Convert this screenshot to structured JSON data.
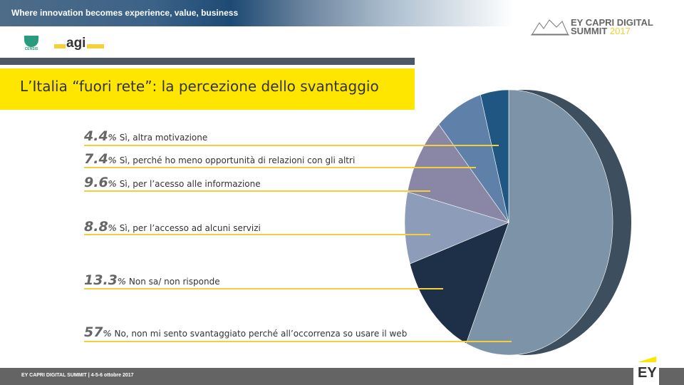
{
  "header": {
    "tagline": "Where innovation becomes experience, value, business",
    "event_logo_line1": "EY CAPRI DIGITAL",
    "event_logo_line2": "SUMMIT",
    "event_logo_year": "2017",
    "censis_logo": "CENSIS",
    "agi_logo": "agi"
  },
  "slide": {
    "title": "L’Italia “fuori rete”: la percezione dello svantaggio"
  },
  "chart_data": {
    "type": "pie",
    "title": "L’Italia “fuori rete”: la percezione dello svantaggio",
    "start": "top",
    "direction": "clockwise",
    "slices": [
      {
        "label": "No, non mi sento svantaggiato perché all’occorrenza so usare il web",
        "value": 57,
        "display": "57",
        "color": "#7d93a7"
      },
      {
        "label": "Non sa/ non risponde",
        "value": 13.3,
        "display": "13.3",
        "color": "#1e3048"
      },
      {
        "label": "Sì, per l’accesso ad alcuni servizi",
        "value": 8.8,
        "display": "8.8",
        "color": "#8d9cb8"
      },
      {
        "label": "Sì, per l’acesso alle informazione",
        "value": 9.6,
        "display": "9.6",
        "color": "#8987a5"
      },
      {
        "label": "Sì, perché ho meno opportunità di relazioni con gli altri",
        "value": 7.4,
        "display": "7.4",
        "color": "#5f80a9"
      },
      {
        "label": "Sì, altra motivazione",
        "value": 4.4,
        "display": "4.4",
        "color": "#1f5682"
      }
    ],
    "legend_order": [
      5,
      4,
      3,
      2,
      1,
      0
    ]
  },
  "footer": {
    "text": "EY CAPRI DIGITAL SUMMIT | 4-5-6 ottobre 2017",
    "brand": "EY"
  }
}
